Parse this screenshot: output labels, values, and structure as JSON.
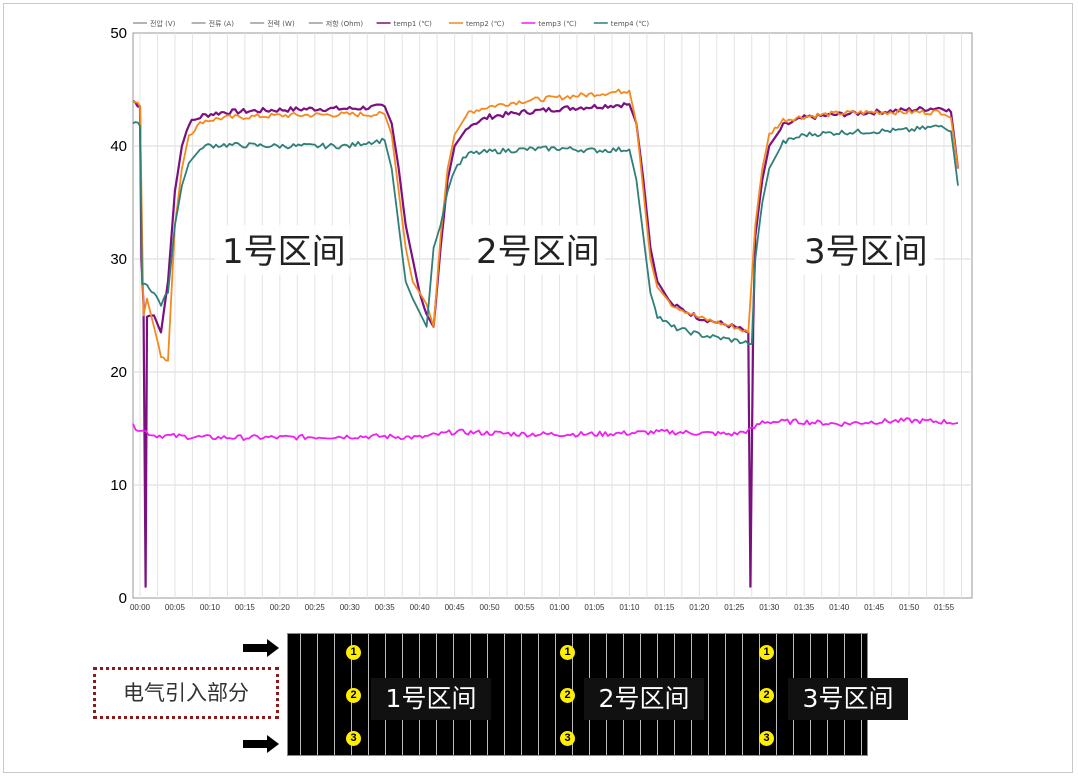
{
  "chart_data": {
    "type": "line",
    "x_ticks": [
      "00:00",
      "00:05",
      "00:10",
      "00:15",
      "00:20",
      "00:25",
      "00:30",
      "00:35",
      "00:40",
      "00:45",
      "00:50",
      "00:55",
      "01:00",
      "01:05",
      "01:10",
      "01:15",
      "01:20",
      "01:25",
      "01:30",
      "01:35",
      "01:40",
      "01:45",
      "01:50",
      "01:55"
    ],
    "y_ticks": [
      0,
      10,
      20,
      30,
      40,
      50
    ],
    "ylim": [
      0,
      50
    ],
    "xlim_minutes": [
      -1,
      119
    ],
    "grid": true,
    "legend_position": "top",
    "legend": [
      {
        "name": "전압 (V)",
        "color": "#9a9a9a"
      },
      {
        "name": "전류 (A)",
        "color": "#9a9a9a"
      },
      {
        "name": "전력 (W)",
        "color": "#9a9a9a"
      },
      {
        "name": "저항 (Ohm)",
        "color": "#9a9a9a"
      },
      {
        "name": "temp1 (℃)",
        "color": "#7b1080"
      },
      {
        "name": "temp2 (℃)",
        "color": "#f5891e"
      },
      {
        "name": "temp3 (℃)",
        "color": "#ee1ff0"
      },
      {
        "name": "temp4 (℃)",
        "color": "#2f7f78"
      }
    ],
    "series": [
      {
        "name": "temp1 (℃)",
        "color": "#7b1080",
        "points": [
          [
            -1,
            44
          ],
          [
            0,
            43.5
          ],
          [
            0.2,
            30
          ],
          [
            0.5,
            26
          ],
          [
            0.8,
            1
          ],
          [
            1,
            25
          ],
          [
            2,
            25
          ],
          [
            3,
            23.5
          ],
          [
            4,
            28
          ],
          [
            5,
            36
          ],
          [
            6,
            40
          ],
          [
            7,
            42
          ],
          [
            9,
            42.7
          ],
          [
            12,
            43
          ],
          [
            20,
            43.2
          ],
          [
            25,
            43.3
          ],
          [
            30,
            43.3
          ],
          [
            35,
            43.5
          ],
          [
            36,
            42
          ],
          [
            37,
            38
          ],
          [
            38,
            33
          ],
          [
            39,
            30
          ],
          [
            40,
            27
          ],
          [
            41,
            25
          ],
          [
            42,
            24
          ],
          [
            43,
            31
          ],
          [
            44,
            37
          ],
          [
            45,
            40
          ],
          [
            47,
            41.8
          ],
          [
            50,
            42.6
          ],
          [
            55,
            43
          ],
          [
            60,
            43.3
          ],
          [
            65,
            43.5
          ],
          [
            70,
            43.7
          ],
          [
            71,
            42
          ],
          [
            72,
            37
          ],
          [
            73,
            31
          ],
          [
            74,
            28
          ],
          [
            76,
            26
          ],
          [
            80,
            24.8
          ],
          [
            85,
            24
          ],
          [
            87,
            23.5
          ],
          [
            87.3,
            1
          ],
          [
            87.7,
            24
          ],
          [
            88,
            32
          ],
          [
            89,
            37
          ],
          [
            90,
            40
          ],
          [
            92,
            41.8
          ],
          [
            95,
            42.5
          ],
          [
            100,
            42.8
          ],
          [
            105,
            43
          ],
          [
            110,
            43.2
          ],
          [
            115,
            43.4
          ],
          [
            116,
            43
          ],
          [
            117,
            38
          ]
        ]
      },
      {
        "name": "temp2 (℃)",
        "color": "#f5891e",
        "points": [
          [
            -1,
            44
          ],
          [
            0,
            43.5
          ],
          [
            0.5,
            25
          ],
          [
            1,
            26.5
          ],
          [
            2,
            24
          ],
          [
            3,
            21.5
          ],
          [
            4,
            21
          ],
          [
            5,
            33
          ],
          [
            6,
            38
          ],
          [
            7,
            41
          ],
          [
            9,
            42.2
          ],
          [
            12,
            42.5
          ],
          [
            20,
            42.7
          ],
          [
            30,
            42.8
          ],
          [
            35,
            42.8
          ],
          [
            36,
            41
          ],
          [
            37,
            36
          ],
          [
            38,
            31
          ],
          [
            39,
            28
          ],
          [
            41,
            26
          ],
          [
            42,
            24
          ],
          [
            43,
            32
          ],
          [
            44,
            38
          ],
          [
            45,
            41
          ],
          [
            47,
            43
          ],
          [
            50,
            43.5
          ],
          [
            55,
            44
          ],
          [
            60,
            44.3
          ],
          [
            65,
            44.6
          ],
          [
            70,
            44.9
          ],
          [
            71,
            42
          ],
          [
            72,
            36
          ],
          [
            73,
            30
          ],
          [
            74,
            27.5
          ],
          [
            76,
            26
          ],
          [
            80,
            24.8
          ],
          [
            85,
            24
          ],
          [
            87,
            23.5
          ],
          [
            88,
            33
          ],
          [
            89,
            38
          ],
          [
            90,
            41
          ],
          [
            92,
            42.3
          ],
          [
            95,
            42.6
          ],
          [
            100,
            42.9
          ],
          [
            105,
            43
          ],
          [
            110,
            43
          ],
          [
            115,
            43
          ],
          [
            116,
            42.5
          ],
          [
            117,
            38
          ]
        ]
      },
      {
        "name": "temp3 (℃)",
        "color": "#ee1ff0",
        "points": [
          [
            -1,
            15.2
          ],
          [
            2,
            14.4
          ],
          [
            10,
            14.2
          ],
          [
            20,
            14.2
          ],
          [
            30,
            14.3
          ],
          [
            35,
            14.3
          ],
          [
            40,
            14.2
          ],
          [
            45,
            14.7
          ],
          [
            50,
            14.6
          ],
          [
            55,
            14.5
          ],
          [
            60,
            14.5
          ],
          [
            65,
            14.5
          ],
          [
            70,
            14.6
          ],
          [
            75,
            14.7
          ],
          [
            80,
            14.6
          ],
          [
            85,
            14.5
          ],
          [
            87.5,
            14.9
          ],
          [
            89,
            15.6
          ],
          [
            95,
            15.6
          ],
          [
            100,
            15.4
          ],
          [
            105,
            15.6
          ],
          [
            110,
            15.7
          ],
          [
            115,
            15.6
          ],
          [
            117,
            15.5
          ]
        ]
      },
      {
        "name": "temp4 (℃)",
        "color": "#2f7f78",
        "points": [
          [
            -1,
            42
          ],
          [
            0,
            41.8
          ],
          [
            0.3,
            28
          ],
          [
            1,
            27.7
          ],
          [
            2,
            27
          ],
          [
            3,
            26
          ],
          [
            4,
            27
          ],
          [
            5,
            33
          ],
          [
            6,
            36.5
          ],
          [
            7,
            38.5
          ],
          [
            9,
            40
          ],
          [
            12,
            40.1
          ],
          [
            20,
            40
          ],
          [
            25,
            40
          ],
          [
            30,
            40
          ],
          [
            32,
            40.3
          ],
          [
            35,
            40.5
          ],
          [
            36,
            38
          ],
          [
            37,
            33
          ],
          [
            38,
            28
          ],
          [
            39,
            26.5
          ],
          [
            41,
            24
          ],
          [
            42,
            31
          ],
          [
            43,
            33
          ],
          [
            44,
            36
          ],
          [
            45,
            38
          ],
          [
            47,
            39.3
          ],
          [
            50,
            39.5
          ],
          [
            55,
            39.7
          ],
          [
            60,
            39.8
          ],
          [
            65,
            39.6
          ],
          [
            70,
            39.7
          ],
          [
            71,
            37
          ],
          [
            72,
            32
          ],
          [
            73,
            27
          ],
          [
            74,
            25
          ],
          [
            76,
            24
          ],
          [
            80,
            23.3
          ],
          [
            85,
            22.8
          ],
          [
            87.5,
            22.5
          ],
          [
            88,
            30
          ],
          [
            89,
            35
          ],
          [
            90,
            38
          ],
          [
            92,
            40.3
          ],
          [
            95,
            41
          ],
          [
            100,
            41.2
          ],
          [
            105,
            41.3
          ],
          [
            110,
            41.4
          ],
          [
            115,
            41.8
          ],
          [
            116,
            41.3
          ],
          [
            117,
            36.5
          ]
        ]
      }
    ],
    "annotations": [
      "1号区间",
      "2号区间",
      "3号区间"
    ]
  },
  "diagram": {
    "zones": [
      "1号区间",
      "2号区间",
      "3号区间"
    ],
    "markers": [
      "1",
      "2",
      "3"
    ],
    "label_box": "电气引入部分"
  }
}
